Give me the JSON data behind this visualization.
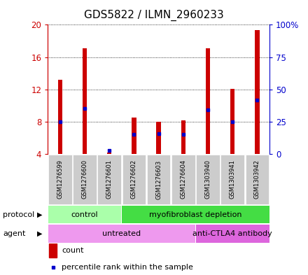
{
  "title": "GDS5822 / ILMN_2960233",
  "samples": [
    "GSM1276599",
    "GSM1276600",
    "GSM1276601",
    "GSM1276602",
    "GSM1276603",
    "GSM1276604",
    "GSM1303940",
    "GSM1303941",
    "GSM1303942"
  ],
  "count_values": [
    13.2,
    17.1,
    4.15,
    8.55,
    7.95,
    8.2,
    17.1,
    12.1,
    19.3
  ],
  "percentile_values": [
    25,
    35,
    3,
    15,
    16,
    15,
    34,
    25,
    42
  ],
  "ylim_left": [
    4,
    20
  ],
  "ylim_right": [
    0,
    100
  ],
  "yticks_left": [
    4,
    8,
    12,
    16,
    20
  ],
  "yticks_right": [
    0,
    25,
    50,
    75,
    100
  ],
  "ytick_labels_left": [
    "4",
    "8",
    "12",
    "16",
    "20"
  ],
  "ytick_labels_right": [
    "0",
    "25",
    "50",
    "75",
    "100%"
  ],
  "left_axis_color": "#cc0000",
  "right_axis_color": "#0000cc",
  "bar_color": "#cc0000",
  "percentile_color": "#0000cc",
  "bar_width": 0.18,
  "protocol_groups": [
    {
      "label": "control",
      "start": 0,
      "end": 3,
      "color": "#aaffaa"
    },
    {
      "label": "myofibroblast depletion",
      "start": 3,
      "end": 9,
      "color": "#44dd44"
    }
  ],
  "agent_groups": [
    {
      "label": "untreated",
      "start": 0,
      "end": 6,
      "color": "#ee99ee"
    },
    {
      "label": "anti-CTLA4 antibody",
      "start": 6,
      "end": 9,
      "color": "#dd66dd"
    }
  ],
  "sample_bg": "#cccccc",
  "legend_count_label": "count",
  "legend_percentile_label": "percentile rank within the sample",
  "protocol_label": "protocol",
  "agent_label": "agent",
  "bg_color": "#ffffff"
}
